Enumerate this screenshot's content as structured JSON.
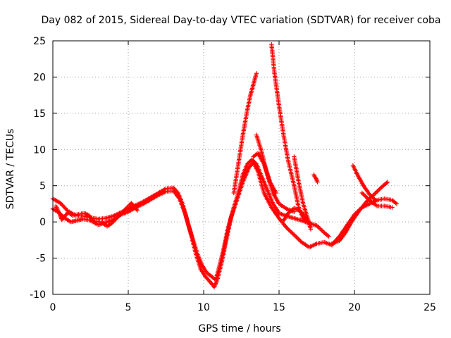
{
  "chart_data": {
    "type": "scatter",
    "title": "Day 082 of 2015, Sidereal Day-to-day VTEC variation (SDTVAR) for receiver coba",
    "xlabel": "GPS time / hours",
    "ylabel": "SDTVAR / TECUs",
    "xlim": [
      0,
      25
    ],
    "ylim": [
      -10,
      25
    ],
    "x_ticks": [
      0,
      5,
      10,
      15,
      20,
      25
    ],
    "y_ticks": [
      -10,
      -5,
      0,
      5,
      10,
      15,
      20,
      25
    ],
    "x_tick_labels": [
      "0",
      "5",
      "10",
      "15",
      "20",
      "25"
    ],
    "y_tick_labels": [
      "-10",
      "-5",
      "0",
      "5",
      "10",
      "15",
      "20",
      "25"
    ],
    "grid": true,
    "marker": "+",
    "color": "#ff0000",
    "series": [
      {
        "name": "main-trace",
        "points": [
          [
            0,
            3.2
          ],
          [
            0.5,
            2.6
          ],
          [
            1,
            1.5
          ],
          [
            1.5,
            0.9
          ],
          [
            2,
            0.8
          ],
          [
            2.5,
            0.6
          ],
          [
            3,
            0.4
          ],
          [
            3.5,
            0.5
          ],
          [
            4,
            0.8
          ],
          [
            4.5,
            1.3
          ],
          [
            5,
            1.8
          ],
          [
            5.5,
            2.3
          ],
          [
            6,
            2.8
          ],
          [
            6.5,
            3.4
          ],
          [
            7,
            4.0
          ],
          [
            7.5,
            4.6
          ],
          [
            8,
            4.7
          ],
          [
            8.3,
            4.0
          ],
          [
            8.6,
            2.5
          ],
          [
            9,
            -0.5
          ],
          [
            9.3,
            -2.5
          ],
          [
            9.6,
            -4.5
          ],
          [
            9.9,
            -6.0
          ],
          [
            10.2,
            -7.0
          ],
          [
            10.5,
            -7.5
          ],
          [
            10.8,
            -8.0
          ],
          [
            11,
            -6.5
          ],
          [
            11.3,
            -4.0
          ],
          [
            11.6,
            -1.0
          ],
          [
            12,
            2.0
          ],
          [
            12.3,
            4.0
          ],
          [
            12.6,
            6.5
          ],
          [
            12.9,
            8.0
          ],
          [
            13.2,
            8.6
          ],
          [
            13.5,
            8.0
          ],
          [
            13.8,
            6.5
          ],
          [
            14.2,
            4.5
          ],
          [
            14.6,
            2.5
          ],
          [
            15,
            1.2
          ],
          [
            15.5,
            0.8
          ],
          [
            16,
            0.5
          ],
          [
            16.5,
            0.2
          ],
          [
            17,
            -0.2
          ],
          [
            17.5,
            -0.5
          ],
          [
            18,
            -1.5
          ],
          [
            18.3,
            -2.0
          ]
        ]
      },
      {
        "name": "lower-trace",
        "points": [
          [
            0,
            1.8
          ],
          [
            0.4,
            1.3
          ],
          [
            0.8,
            0.5
          ],
          [
            1.2,
            0.0
          ],
          [
            1.6,
            0.2
          ],
          [
            2,
            0.4
          ],
          [
            2.5,
            0.2
          ],
          [
            3,
            -0.4
          ],
          [
            3.5,
            -0.1
          ],
          [
            4,
            0.3
          ],
          [
            4.5,
            1.0
          ],
          [
            5,
            1.4
          ],
          [
            5.5,
            2.0
          ],
          [
            6,
            2.5
          ],
          [
            6.5,
            3.1
          ],
          [
            7,
            3.7
          ],
          [
            7.5,
            4.2
          ],
          [
            8,
            4.3
          ],
          [
            8.4,
            3.2
          ],
          [
            8.8,
            1.0
          ],
          [
            9.2,
            -2.0
          ],
          [
            9.5,
            -4.5
          ],
          [
            9.8,
            -6.5
          ],
          [
            10.1,
            -7.5
          ],
          [
            10.4,
            -8.2
          ],
          [
            10.7,
            -9.0
          ],
          [
            10.9,
            -8.0
          ],
          [
            11.2,
            -5.5
          ],
          [
            11.5,
            -2.5
          ],
          [
            11.8,
            0.5
          ],
          [
            12.2,
            3.0
          ],
          [
            12.6,
            5.5
          ],
          [
            13,
            7.5
          ],
          [
            13.3,
            8.2
          ],
          [
            13.6,
            7.0
          ],
          [
            14,
            4.0
          ],
          [
            14.5,
            2.0
          ],
          [
            15,
            0.5
          ],
          [
            15.5,
            -0.8
          ],
          [
            16,
            -1.8
          ],
          [
            16.5,
            -2.8
          ],
          [
            17,
            -3.5
          ],
          [
            17.5,
            -3.0
          ],
          [
            18,
            -2.8
          ],
          [
            18.5,
            -3.2
          ],
          [
            19,
            -2.0
          ],
          [
            19.5,
            -0.5
          ],
          [
            20,
            1.0
          ],
          [
            20.5,
            2.0
          ],
          [
            21,
            2.5
          ],
          [
            21.5,
            3.0
          ],
          [
            22,
            3.2
          ],
          [
            22.5,
            3.0
          ],
          [
            22.8,
            2.5
          ]
        ]
      },
      {
        "name": "spike-a",
        "points": [
          [
            12,
            4.0
          ],
          [
            12.3,
            8.0
          ],
          [
            12.6,
            12.0
          ],
          [
            12.9,
            15.5
          ],
          [
            13.1,
            17.5
          ],
          [
            13.3,
            19.0
          ],
          [
            13.5,
            20.5
          ]
        ]
      },
      {
        "name": "spike-b",
        "points": [
          [
            13.5,
            12.0
          ],
          [
            13.8,
            10.0
          ],
          [
            14.1,
            7.5
          ],
          [
            14.4,
            5.5
          ],
          [
            14.8,
            4.0
          ]
        ]
      },
      {
        "name": "spike-c",
        "points": [
          [
            13.3,
            9.0
          ],
          [
            13.6,
            9.5
          ],
          [
            14,
            8.0
          ],
          [
            14.3,
            6.0
          ],
          [
            14.6,
            4.0
          ],
          [
            15,
            2.5
          ],
          [
            15.5,
            1.8
          ],
          [
            16,
            1.4
          ]
        ]
      },
      {
        "name": "peak-trace",
        "points": [
          [
            14.5,
            24.5
          ],
          [
            14.7,
            20.5
          ],
          [
            15,
            16.0
          ],
          [
            15.3,
            12.0
          ],
          [
            15.6,
            8.5
          ],
          [
            16,
            5.0
          ],
          [
            16.3,
            2.0
          ],
          [
            16.6,
            0.5
          ],
          [
            17,
            0.0
          ]
        ]
      },
      {
        "name": "spike-d",
        "points": [
          [
            16.0,
            9.0
          ],
          [
            16.3,
            5.5
          ],
          [
            16.6,
            2.5
          ],
          [
            16.9,
            0.5
          ],
          [
            17.1,
            -1.0
          ]
        ]
      },
      {
        "name": "short-seg",
        "points": [
          [
            17.3,
            6.5
          ],
          [
            17.45,
            6.0
          ],
          [
            17.55,
            5.5
          ]
        ]
      },
      {
        "name": "late-drop",
        "points": [
          [
            19.9,
            7.8
          ],
          [
            20.2,
            6.5
          ],
          [
            20.6,
            5.0
          ],
          [
            21,
            3.8
          ],
          [
            21.4,
            3.0
          ]
        ]
      },
      {
        "name": "late-rise",
        "points": [
          [
            18.5,
            -3.0
          ],
          [
            19,
            -2.6
          ],
          [
            19.4,
            -1.5
          ],
          [
            19.8,
            0.0
          ],
          [
            20.3,
            1.5
          ],
          [
            20.8,
            2.8
          ],
          [
            21.3,
            3.8
          ],
          [
            21.8,
            4.8
          ],
          [
            22.2,
            5.5
          ]
        ]
      },
      {
        "name": "late-cross",
        "points": [
          [
            20.5,
            4.0
          ],
          [
            21,
            3.0
          ],
          [
            21.5,
            2.2
          ],
          [
            22,
            2.2
          ],
          [
            22.5,
            2.0
          ]
        ]
      },
      {
        "name": "hump",
        "points": [
          [
            15.3,
            0.2
          ],
          [
            15.6,
            1.2
          ],
          [
            16,
            1.9
          ],
          [
            16.4,
            1.5
          ],
          [
            16.8,
            0.6
          ]
        ]
      },
      {
        "name": "scatter-cluster",
        "points": [
          [
            0.2,
            2.2
          ],
          [
            0.45,
            1.1
          ],
          [
            0.6,
            0.3
          ],
          [
            1.0,
            1.3
          ],
          [
            1.3,
            0.9
          ],
          [
            2.1,
            1.2
          ],
          [
            2.4,
            0.9
          ],
          [
            2.7,
            0.1
          ],
          [
            3.2,
            0.0
          ],
          [
            3.6,
            -0.6
          ],
          [
            3.9,
            -0.2
          ],
          [
            5.2,
            2.6
          ],
          [
            5.6,
            1.6
          ]
        ]
      }
    ]
  }
}
